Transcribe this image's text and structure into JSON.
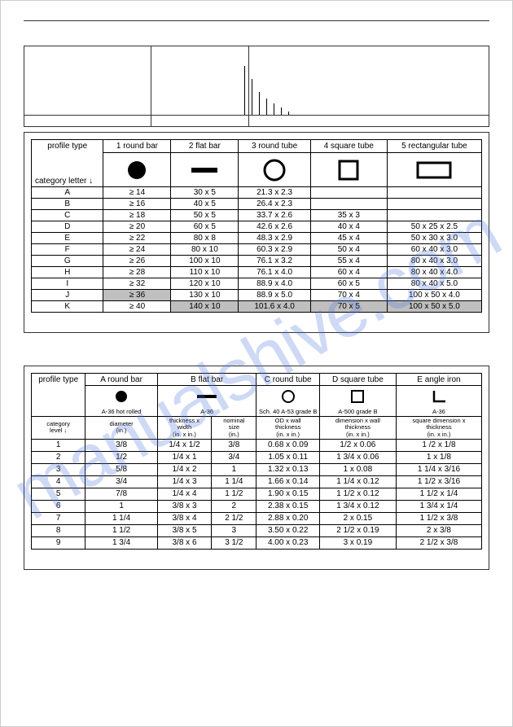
{
  "watermark": "manualshive.com",
  "table1": {
    "header": {
      "profile_type": "profile type",
      "category_letter": "category letter ↓",
      "cols": [
        "1 round bar",
        "2 flat bar",
        "3 round tube",
        "4 square tube",
        "5 rectangular tube"
      ]
    },
    "rows": [
      {
        "cat": "A",
        "c1": "≥ 14",
        "c2": "30 x 5",
        "c3": "21.3 x 2.3",
        "c4": "",
        "c5": ""
      },
      {
        "cat": "B",
        "c1": "≥ 16",
        "c2": "40 x 5",
        "c3": "26.4 x 2.3",
        "c4": "",
        "c5": ""
      },
      {
        "cat": "C",
        "c1": "≥ 18",
        "c2": "50 x 5",
        "c3": "33.7 x 2.6",
        "c4": "35 x 3",
        "c5": ""
      },
      {
        "cat": "D",
        "c1": "≥ 20",
        "c2": "60 x 5",
        "c3": "42.6 x 2.6",
        "c4": "40 x 4",
        "c5": "50 x 25 x 2.5"
      },
      {
        "cat": "E",
        "c1": "≥ 22",
        "c2": "80 x 8",
        "c3": "48.3 x 2.9",
        "c4": "45 x 4",
        "c5": "50 x 30 x 3.0"
      },
      {
        "cat": "F",
        "c1": "≥ 24",
        "c2": "80 x 10",
        "c3": "60.3 x 2.9",
        "c4": "50 x 4",
        "c5": "60 x 40 x 3.0"
      },
      {
        "cat": "G",
        "c1": "≥ 26",
        "c2": "100 x 10",
        "c3": "76.1 x 3.2",
        "c4": "55 x 4",
        "c5": "80 x 40 x 3.0"
      },
      {
        "cat": "H",
        "c1": "≥ 28",
        "c2": "110 x 10",
        "c3": "76.1 x 4.0",
        "c4": "60 x 4",
        "c5": "80 x 40 x 4.0"
      },
      {
        "cat": "I",
        "c1": "≥ 32",
        "c2": "120 x 10",
        "c3": "88.9 x 4.0",
        "c4": "60 x 5",
        "c5": "80 x 40 x 5.0"
      },
      {
        "cat": "J",
        "c1": "≥ 36",
        "c2": "130 x 10",
        "c3": "88.9 x 5.0",
        "c4": "70 x 4",
        "c5": "100 x 50 x 4.0",
        "shade": [
          "c1"
        ]
      },
      {
        "cat": "K",
        "c1": "≥ 40",
        "c2": "140 x 10",
        "c3": "101.6 x 4.0",
        "c4": "70 x 5",
        "c5": "100 x 50 x 5.0",
        "shade": [
          "c2",
          "c3",
          "c4",
          "c5"
        ]
      }
    ]
  },
  "table2": {
    "header": {
      "profile_type": "profile type",
      "category": "category\nlevel ↓",
      "cols": [
        "A round bar",
        "B flat bar",
        "C round tube",
        "D square tube",
        "E angle iron"
      ],
      "materials": [
        "A-36 hot rolled",
        "A-36",
        "Sch. 40 A-53 grade B",
        "A-500 grade B",
        "A-36"
      ],
      "subhead_col1": "diameter\n(in.)",
      "subs": [
        "thickness x\nwidth\n(in. x in.)",
        "nominal\nsize\n(in.)",
        "OD x wall\nthickness\n(in. x in.)",
        "dimension x wall\nthickness\n(in. x in.)",
        "square dimension x\nthickness\n(in. x in.)"
      ]
    },
    "rows": [
      {
        "lvl": "1",
        "a": "3/8",
        "b": "1/4 x 1/2",
        "c": "3/8",
        "d": "0.68 x 0.09",
        "e": "1/2 x 0.06",
        "f": "1 /2 x 1/8"
      },
      {
        "lvl": "2",
        "a": "1/2",
        "b": "1/4 x 1",
        "c": "3/4",
        "d": "1.05 x 0.11",
        "e": "1 3/4 x 0.06",
        "f": "1 x 1/8"
      },
      {
        "lvl": "3",
        "a": "5/8",
        "b": "1/4 x 2",
        "c": "1",
        "d": "1.32 x 0.13",
        "e": "1 x 0.08",
        "f": "1 1/4 x 3/16"
      },
      {
        "lvl": "4",
        "a": "3/4",
        "b": "1/4 x 3",
        "c": "1 1/4",
        "d": "1.66 x 0.14",
        "e": "1 1/4 x 0.12",
        "f": "1 1/2 x 3/16"
      },
      {
        "lvl": "5",
        "a": "7/8",
        "b": "1/4 x 4",
        "c": "1 1/2",
        "d": "1.90 x 0.15",
        "e": "1 1/2 x 0.12",
        "f": "1 1/2 x 1/4"
      },
      {
        "lvl": "6",
        "a": "1",
        "b": "3/8 x 3",
        "c": "2",
        "d": "2.38 x 0.15",
        "e": "1 3/4 x 0.12",
        "f": "1 3/4 x 1/4"
      },
      {
        "lvl": "7",
        "a": "1 1/4",
        "b": "3/8 x 4",
        "c": "2 1/2",
        "d": "2.88 x 0.20",
        "e": "2 x 0.15",
        "f": "1 1/2 x 3/8"
      },
      {
        "lvl": "8",
        "a": "1 1/2",
        "b": "3/8 x 5",
        "c": "3",
        "d": "3.50 x 0.22",
        "e": "2 1/2 x 0.19",
        "f": "2 x 3/8"
      },
      {
        "lvl": "9",
        "a": "1 3/4",
        "b": "3/8 x 6",
        "c": "3 1/2",
        "d": "4.00 x 0.23",
        "e": "3 x 0.19",
        "f": "2 1/2 x 3/8"
      }
    ]
  },
  "bars": [
    60,
    44,
    28,
    20,
    14,
    9,
    4
  ],
  "top_verts": [
    155,
    275
  ]
}
